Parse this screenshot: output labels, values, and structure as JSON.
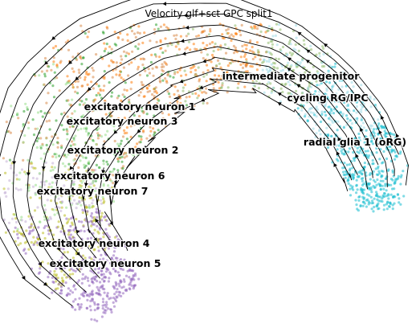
{
  "chart_data": {
    "type": "scatter",
    "title": "Velocity glf+sct GPC split1",
    "xlabel": "",
    "ylabel": "",
    "grid": false,
    "legend": "on data",
    "clusters": [
      {
        "name": "intermediate progenitor",
        "color": "#8fbc6b"
      },
      {
        "name": "cycling RG/IPC",
        "color": "#9edae5"
      },
      {
        "name": "radial glia 1 (oRG)",
        "color": "#17becf"
      },
      {
        "name": "excitatory neuron 1",
        "color": "#ff7f0e"
      },
      {
        "name": "excitatory neuron 3",
        "color": "#d98b4a"
      },
      {
        "name": "excitatory neuron 2",
        "color": "#2ca02c"
      },
      {
        "name": "excitatory neuron 6",
        "color": "#98df8a"
      },
      {
        "name": "excitatory neuron 7",
        "color": "#c5b0d5"
      },
      {
        "name": "excitatory neuron 4",
        "color": "#bcbd22"
      },
      {
        "name": "excitatory neuron 5",
        "color": "#9467bd"
      }
    ]
  }
}
